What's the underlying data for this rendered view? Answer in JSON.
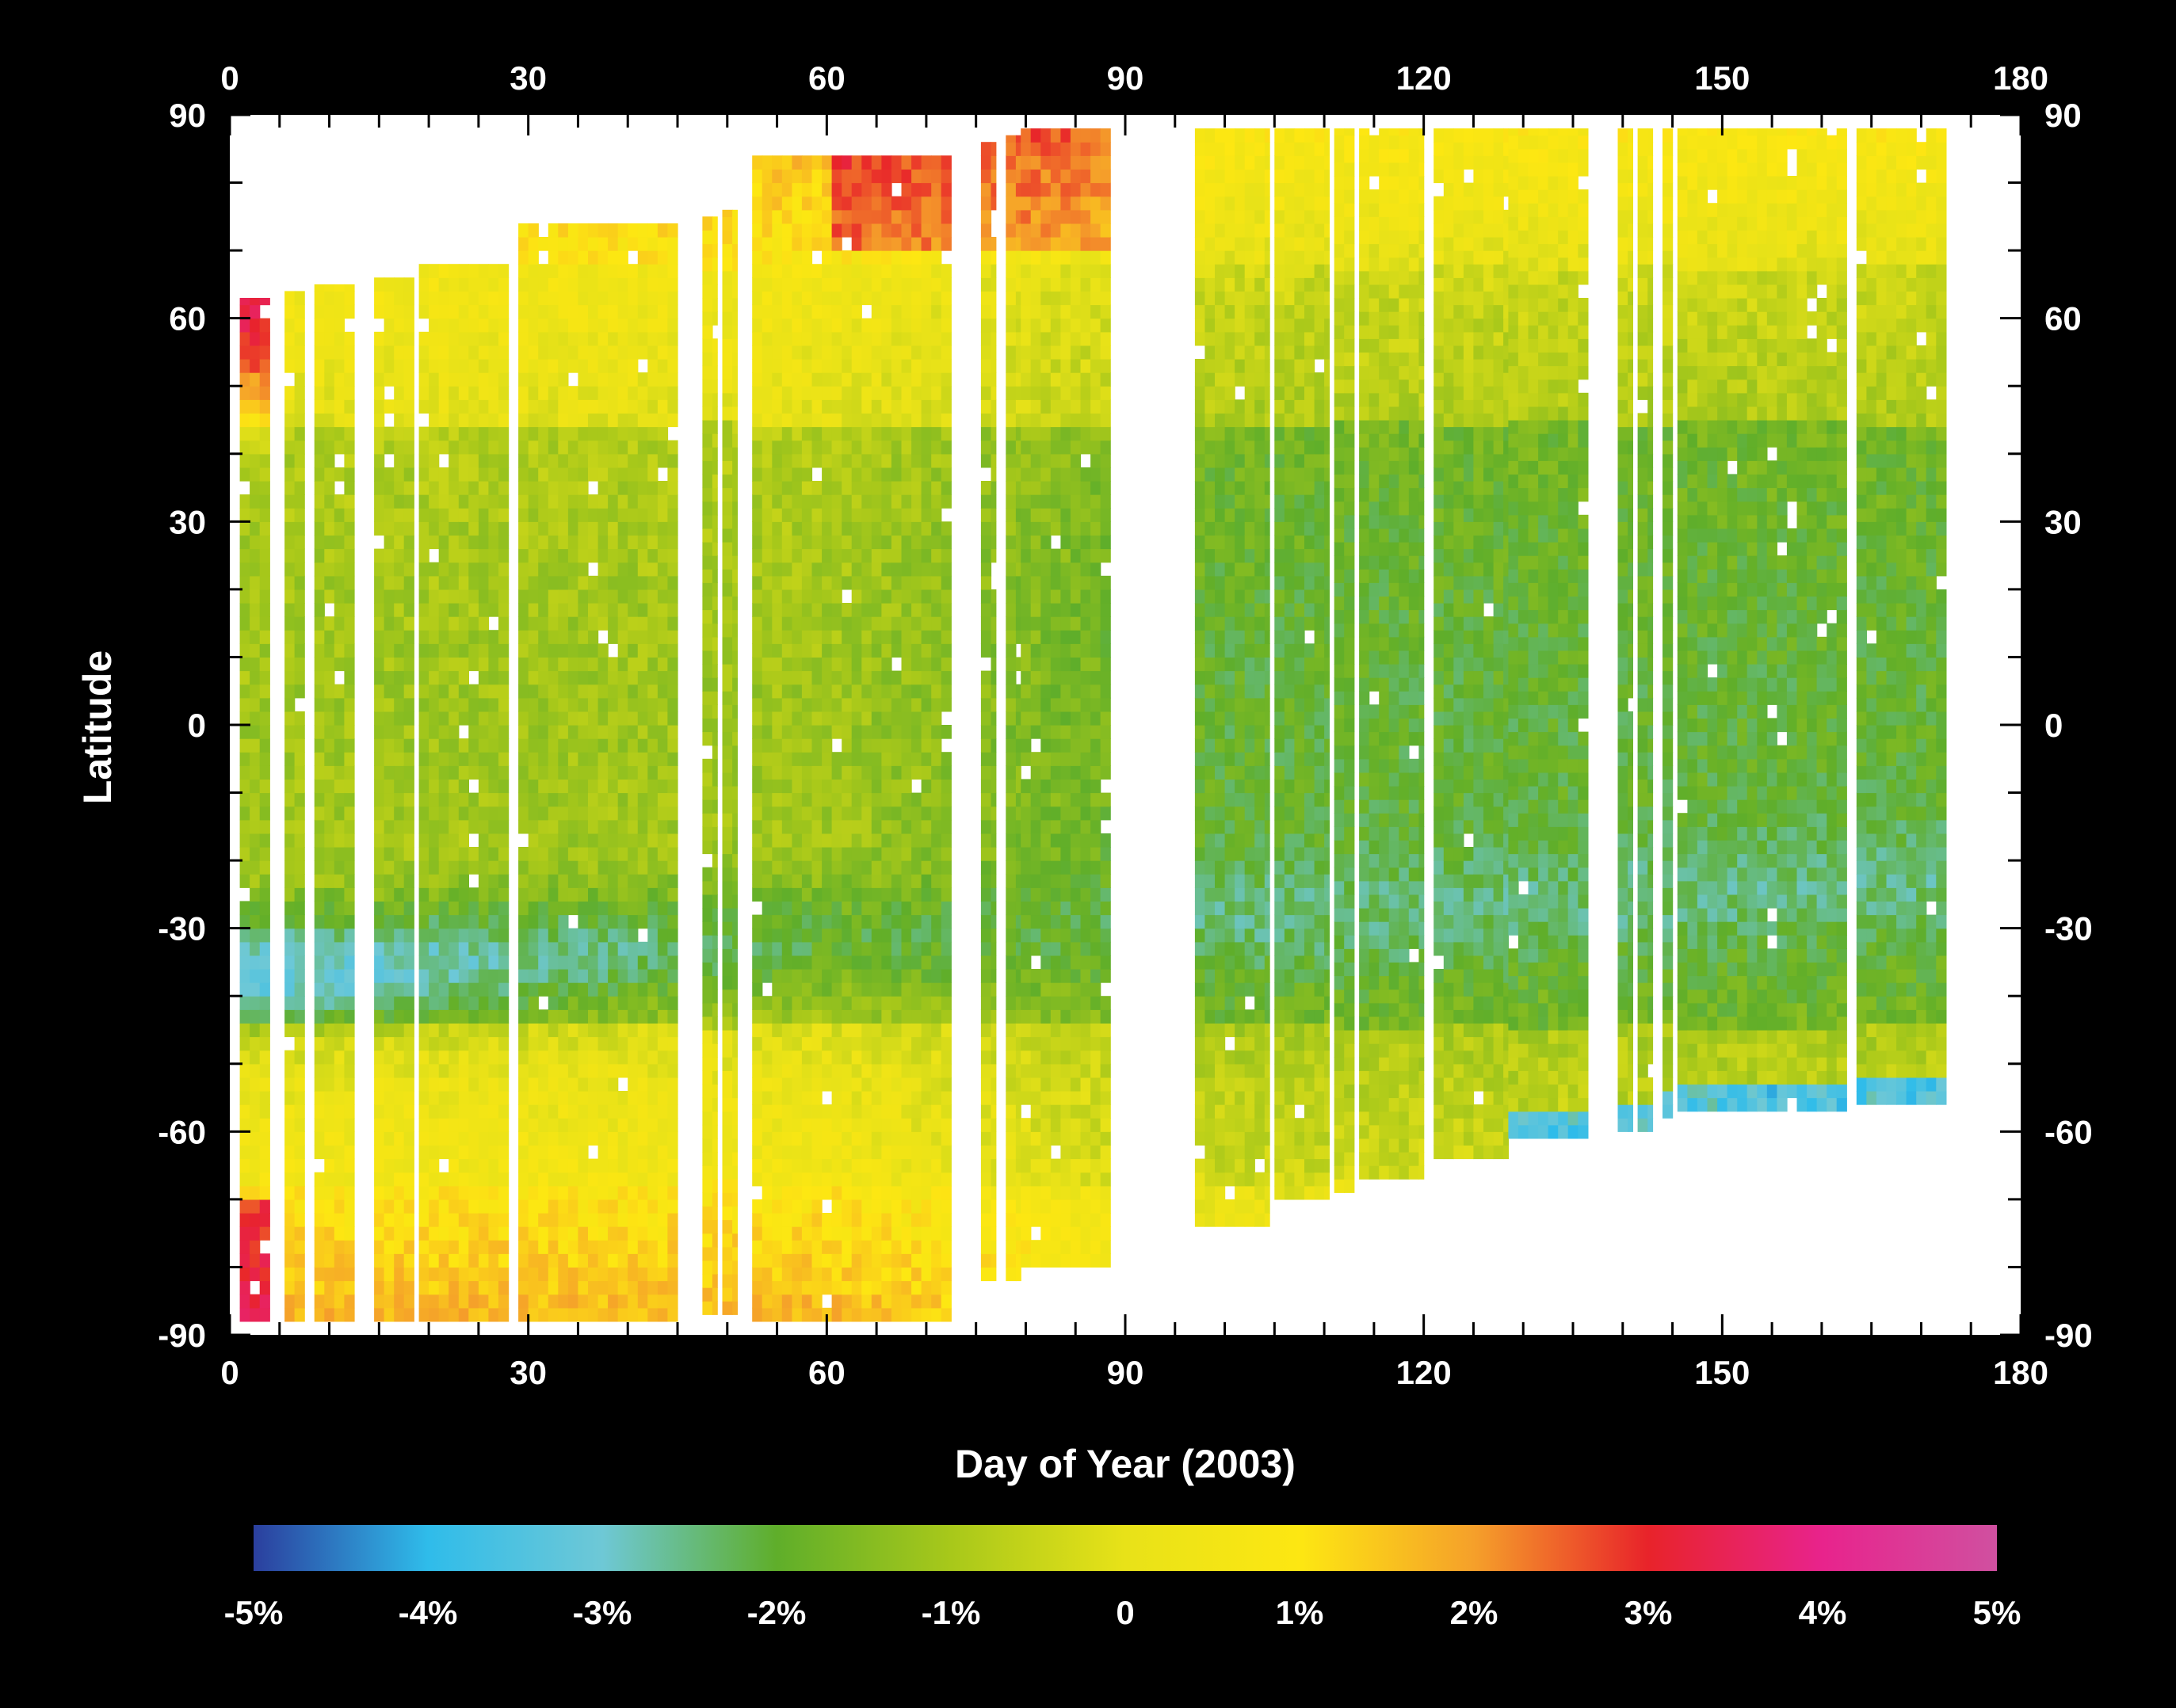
{
  "chart_data": {
    "type": "heatmap",
    "title": "",
    "xlabel": "Day of Year (2003)",
    "ylabel": "Latitude",
    "xlim": [
      0,
      180
    ],
    "ylim": [
      -90,
      90
    ],
    "xticks": [
      0,
      30,
      60,
      90,
      120,
      150,
      180
    ],
    "xtick_labels": [
      "0",
      "30",
      "60",
      "90",
      "120",
      "150",
      "180"
    ],
    "yticks": [
      90,
      60,
      30,
      0,
      -30,
      -60,
      -90
    ],
    "ytick_labels": [
      "90",
      "60",
      "30",
      "0",
      "-30",
      "-60",
      "-90"
    ],
    "grid": false,
    "colorbar": {
      "orientation": "horizontal",
      "placement": "bottom",
      "range": [
        -5,
        5
      ],
      "unit": "%",
      "tick_values": [
        -5,
        -4,
        -3,
        -2,
        -1,
        0,
        1,
        2,
        3,
        4,
        5
      ],
      "tick_labels": [
        "-5%",
        "-4%",
        "-3%",
        "-2%",
        "-1%",
        "0",
        "1%",
        "2%",
        "3%",
        "4%",
        "5%"
      ],
      "colors": [
        "#2b3f9e",
        "#2fbcea",
        "#6ec8d6",
        "#5fae2a",
        "#a8c81a",
        "#e8e218",
        "#fde712",
        "#f5a02a",
        "#e8232a",
        "#e8238c",
        "#d050a0"
      ]
    },
    "segments": [
      {
        "day_start": 1,
        "day_end": 4,
        "lat_min": -88,
        "lat_max": 63
      },
      {
        "day_start": 5.5,
        "day_end": 7.5,
        "lat_min": -88,
        "lat_max": 64
      },
      {
        "day_start": 8.5,
        "day_end": 12.5,
        "lat_min": -88,
        "lat_max": 65
      },
      {
        "day_start": 14.5,
        "day_end": 18.5,
        "lat_min": -88,
        "lat_max": 66
      },
      {
        "day_start": 19,
        "day_end": 28,
        "lat_min": -88,
        "lat_max": 68
      },
      {
        "day_start": 29,
        "day_end": 45,
        "lat_min": -88,
        "lat_max": 74
      },
      {
        "day_start": 47.5,
        "day_end": 49,
        "lat_min": -87,
        "lat_max": 75
      },
      {
        "day_start": 49.5,
        "day_end": 51,
        "lat_min": -87,
        "lat_max": 76
      },
      {
        "day_start": 52.5,
        "day_end": 72.5,
        "lat_min": -88,
        "lat_max": 84
      },
      {
        "day_start": 75.5,
        "day_end": 77,
        "lat_min": -82,
        "lat_max": 86
      },
      {
        "day_start": 78,
        "day_end": 79.5,
        "lat_min": -82,
        "lat_max": 87
      },
      {
        "day_start": 79.5,
        "day_end": 88.5,
        "lat_min": -80,
        "lat_max": 88
      },
      {
        "day_start": 97,
        "day_end": 104.5,
        "lat_min": -74,
        "lat_max": 88
      },
      {
        "day_start": 105,
        "day_end": 110.5,
        "lat_min": -70,
        "lat_max": 88
      },
      {
        "day_start": 111,
        "day_end": 113,
        "lat_min": -69,
        "lat_max": 88
      },
      {
        "day_start": 113.5,
        "day_end": 120,
        "lat_min": -67,
        "lat_max": 88
      },
      {
        "day_start": 121,
        "day_end": 128.5,
        "lat_min": -64,
        "lat_max": 88
      },
      {
        "day_start": 128.5,
        "day_end": 136.5,
        "lat_min": -61,
        "lat_max": 88
      },
      {
        "day_start": 139.5,
        "day_end": 141,
        "lat_min": -60,
        "lat_max": 88
      },
      {
        "day_start": 141.5,
        "day_end": 143,
        "lat_min": -60,
        "lat_max": 88
      },
      {
        "day_start": 144,
        "day_end": 145,
        "lat_min": -58,
        "lat_max": 88
      },
      {
        "day_start": 145.5,
        "day_end": 162.5,
        "lat_min": -57,
        "lat_max": 88
      },
      {
        "day_start": 163.5,
        "day_end": 172.5,
        "lat_min": -56,
        "lat_max": 88
      }
    ]
  }
}
